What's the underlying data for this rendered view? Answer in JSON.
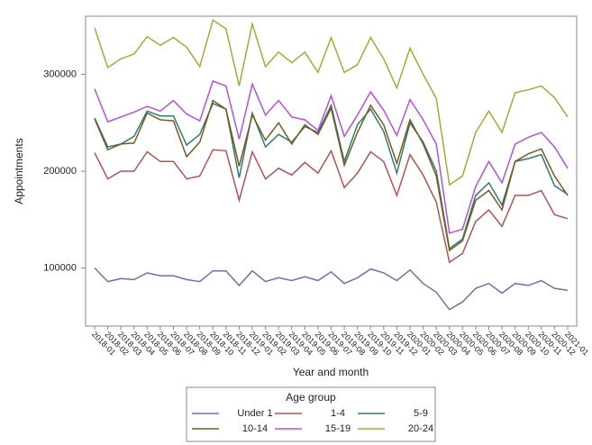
{
  "chart_data": {
    "type": "line",
    "x_label": "Year and month",
    "y_label": "Appointments",
    "legend_title": "Age group",
    "legend_position": "bottom",
    "categories": [
      "2018-01",
      "2018-02",
      "2018-03",
      "2018-04",
      "2018-05",
      "2018-06",
      "2018-07",
      "2018-08",
      "2018-09",
      "2018-10",
      "2018-11",
      "2018-12",
      "2019-01",
      "2019-02",
      "2019-03",
      "2019-04",
      "2019-05",
      "2019-06",
      "2019-07",
      "2019-08",
      "2019-09",
      "2019-10",
      "2019-11",
      "2019-12",
      "2020-01",
      "2020-02",
      "2020-03",
      "2020-04",
      "2020-05",
      "2020-06",
      "2020-07",
      "2020-08",
      "2020-09",
      "2020-10",
      "2020-11",
      "2020-12",
      "2021-01"
    ],
    "ylim": [
      40000,
      360000
    ],
    "yticks": [
      100000,
      200000,
      300000
    ],
    "series": [
      {
        "name": "Under 1",
        "color": "#6b72a8",
        "values": [
          100000,
          86000,
          89000,
          88000,
          95000,
          92000,
          92000,
          88000,
          86000,
          97000,
          97000,
          82000,
          97000,
          86000,
          90000,
          87000,
          91000,
          87000,
          96000,
          84000,
          90000,
          99000,
          95000,
          87000,
          98000,
          84000,
          75000,
          57000,
          65000,
          79000,
          84000,
          74000,
          84000,
          82000,
          87000,
          79000,
          77000
        ]
      },
      {
        "name": "1-4",
        "color": "#b5534f",
        "values": [
          219000,
          192000,
          200000,
          200000,
          220000,
          210000,
          210000,
          192000,
          195000,
          222000,
          221000,
          170000,
          220000,
          192000,
          203000,
          196000,
          209000,
          198000,
          221000,
          183000,
          198000,
          220000,
          210000,
          175000,
          217000,
          196000,
          168000,
          106000,
          115000,
          148000,
          160000,
          143000,
          175000,
          175000,
          180000,
          155000,
          151000
        ]
      },
      {
        "name": "5-9",
        "color": "#2f7a78",
        "values": [
          255000,
          225000,
          228000,
          236000,
          262000,
          257000,
          257000,
          227000,
          238000,
          270000,
          264000,
          193000,
          260000,
          225000,
          238000,
          230000,
          246000,
          240000,
          268000,
          210000,
          248000,
          264000,
          241000,
          198000,
          250000,
          230000,
          200000,
          120000,
          130000,
          175000,
          188000,
          165000,
          210000,
          213000,
          217000,
          185000,
          176000
        ]
      },
      {
        "name": "10-14",
        "color": "#7a5a1e",
        "values": [
          254000,
          222000,
          228000,
          229000,
          260000,
          253000,
          252000,
          215000,
          230000,
          273000,
          264000,
          205000,
          258000,
          232000,
          250000,
          228000,
          248000,
          238000,
          265000,
          206000,
          240000,
          268000,
          248000,
          208000,
          253000,
          228000,
          195000,
          118000,
          128000,
          170000,
          180000,
          160000,
          210000,
          218000,
          223000,
          195000,
          175000
        ]
      },
      {
        "name": "15-19",
        "color": "#b74fe0",
        "values": [
          285000,
          251000,
          256000,
          261000,
          267000,
          262000,
          273000,
          259000,
          252000,
          293000,
          288000,
          233000,
          290000,
          258000,
          273000,
          256000,
          253000,
          242000,
          278000,
          236000,
          258000,
          282000,
          263000,
          237000,
          274000,
          253000,
          228000,
          136000,
          140000,
          184000,
          210000,
          188000,
          228000,
          235000,
          240000,
          225000,
          203000
        ]
      },
      {
        "name": "20-24",
        "color": "#a8a83a",
        "values": [
          348000,
          307000,
          316000,
          321000,
          339000,
          330000,
          338000,
          328000,
          308000,
          356000,
          347000,
          288000,
          352000,
          308000,
          323000,
          312000,
          323000,
          302000,
          338000,
          302000,
          310000,
          338000,
          316000,
          286000,
          327000,
          300000,
          275000,
          186000,
          195000,
          240000,
          262000,
          240000,
          281000,
          284000,
          288000,
          276000,
          256000
        ]
      }
    ]
  }
}
